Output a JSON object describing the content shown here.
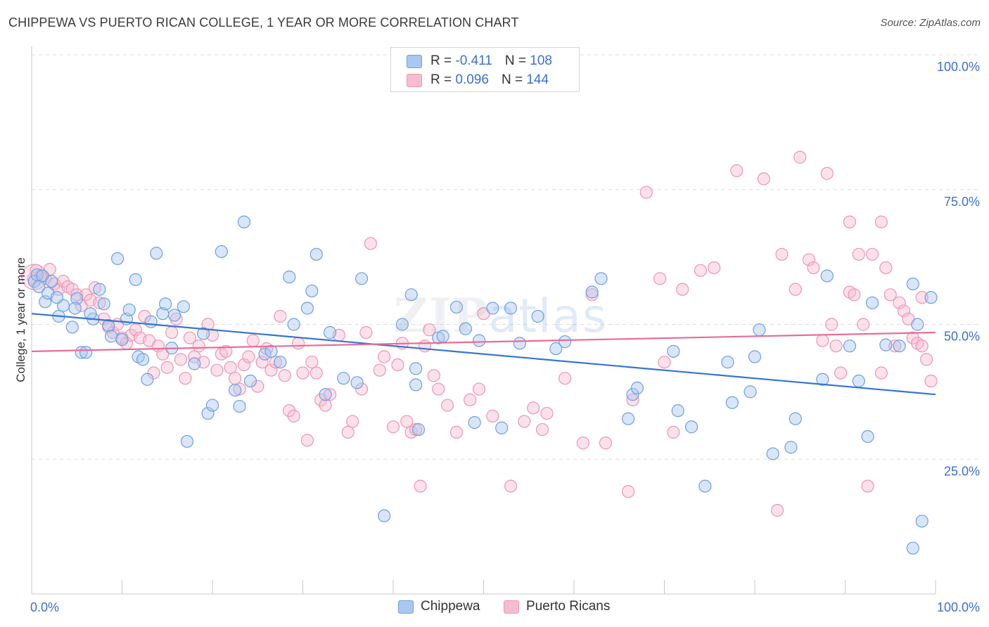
{
  "title": "CHIPPEWA VS PUERTO RICAN COLLEGE, 1 YEAR OR MORE CORRELATION CHART",
  "source": "Source: ZipAtlas.com",
  "watermark": {
    "zip": "ZIP",
    "atlas": "atlas"
  },
  "legend": {
    "rows": [
      {
        "r_label": "R =",
        "r_value": "-0.411",
        "n_label": "N =",
        "n_value": "108"
      },
      {
        "r_label": "R =",
        "r_value": "0.096",
        "n_label": "N =",
        "n_value": "144"
      }
    ]
  },
  "bottom_legend": {
    "chippewa": "Chippewa",
    "puerto_ricans": "Puerto Ricans"
  },
  "colors": {
    "chippewa_fill": "#a9c8f0",
    "chippewa_stroke": "#6e9fe0",
    "chippewa_line": "#3575d0",
    "pr_fill": "#f6bdd0",
    "pr_stroke": "#ee94b2",
    "pr_line": "#e86d96",
    "tick_label": "#3b6fd0",
    "grid": "#dddddd"
  },
  "chart_data": {
    "type": "scatter",
    "title": "CHIPPEWA VS PUERTO RICAN COLLEGE, 1 YEAR OR MORE CORRELATION CHART",
    "xlabel": "",
    "ylabel": "College, 1 year or more",
    "xlim": [
      0,
      100
    ],
    "ylim": [
      0,
      100
    ],
    "x_tick_labels": [
      "0.0%",
      "100.0%"
    ],
    "y_ticks": [
      25,
      50,
      75,
      100
    ],
    "y_tick_labels": [
      "25.0%",
      "50.0%",
      "75.0%",
      "100.0%"
    ],
    "grid": true,
    "legend_position": "top-center",
    "series": [
      {
        "name": "Chippewa",
        "r": -0.411,
        "n": 108,
        "trend": [
          [
            0,
            52.0
          ],
          [
            100,
            37.0
          ]
        ],
        "points": [
          [
            0.3,
            58.0
          ],
          [
            0.6,
            59.2
          ],
          [
            1.2,
            59.0
          ],
          [
            1.5,
            54.2
          ],
          [
            1.8,
            55.8
          ],
          [
            2.2,
            58.0
          ],
          [
            3.0,
            51.5
          ],
          [
            3.5,
            53.5
          ],
          [
            4.5,
            49.5
          ],
          [
            5.0,
            54.8
          ],
          [
            5.5,
            44.8
          ],
          [
            6.0,
            44.8
          ],
          [
            6.8,
            51.0
          ],
          [
            7.5,
            56.5
          ],
          [
            8.0,
            53.8
          ],
          [
            8.5,
            49.8
          ],
          [
            8.8,
            47.8
          ],
          [
            9.5,
            62.2
          ],
          [
            10.0,
            47.2
          ],
          [
            10.5,
            51.0
          ],
          [
            10.8,
            52.7
          ],
          [
            11.5,
            58.3
          ],
          [
            11.8,
            44.0
          ],
          [
            12.3,
            43.5
          ],
          [
            12.8,
            39.8
          ],
          [
            13.2,
            50.5
          ],
          [
            13.8,
            63.2
          ],
          [
            14.5,
            52.0
          ],
          [
            14.8,
            53.8
          ],
          [
            15.5,
            45.6
          ],
          [
            15.8,
            51.7
          ],
          [
            16.8,
            53.3
          ],
          [
            17.2,
            28.3
          ],
          [
            18.0,
            42.7
          ],
          [
            19.0,
            48.3
          ],
          [
            19.5,
            33.5
          ],
          [
            20.0,
            35.0
          ],
          [
            21.0,
            63.5
          ],
          [
            22.5,
            37.8
          ],
          [
            23.0,
            34.8
          ],
          [
            23.5,
            69.0
          ],
          [
            24.2,
            39.5
          ],
          [
            25.8,
            44.5
          ],
          [
            26.5,
            45.0
          ],
          [
            27.5,
            43.0
          ],
          [
            28.5,
            58.8
          ],
          [
            29.0,
            50.0
          ],
          [
            30.5,
            53.0
          ],
          [
            31.0,
            56.2
          ],
          [
            31.5,
            63.0
          ],
          [
            32.5,
            37.0
          ],
          [
            33.0,
            48.5
          ],
          [
            34.5,
            40.0
          ],
          [
            36.0,
            39.2
          ],
          [
            36.5,
            58.5
          ],
          [
            39.0,
            14.5
          ],
          [
            41.0,
            50.0
          ],
          [
            42.0,
            55.5
          ],
          [
            42.5,
            38.8
          ],
          [
            42.5,
            41.8
          ],
          [
            42.8,
            30.5
          ],
          [
            45.0,
            47.5
          ],
          [
            45.5,
            47.8
          ],
          [
            47.0,
            53.2
          ],
          [
            48.0,
            49.2
          ],
          [
            49.0,
            31.8
          ],
          [
            49.5,
            47.0
          ],
          [
            51.0,
            53.0
          ],
          [
            52.0,
            30.8
          ],
          [
            53.0,
            53.0
          ],
          [
            54.0,
            46.5
          ],
          [
            56.0,
            51.5
          ],
          [
            58.0,
            45.5
          ],
          [
            59.0,
            46.8
          ],
          [
            62.0,
            56.0
          ],
          [
            63.0,
            58.5
          ],
          [
            66.0,
            32.5
          ],
          [
            66.5,
            37.0
          ],
          [
            67.0,
            38.2
          ],
          [
            71.0,
            45.0
          ],
          [
            71.5,
            34.0
          ],
          [
            73.0,
            31.0
          ],
          [
            74.5,
            20.0
          ],
          [
            77.0,
            43.0
          ],
          [
            77.5,
            35.5
          ],
          [
            79.5,
            37.5
          ],
          [
            80.0,
            44.0
          ],
          [
            80.5,
            49.0
          ],
          [
            82.0,
            26.0
          ],
          [
            84.0,
            27.2
          ],
          [
            84.5,
            32.5
          ],
          [
            87.5,
            39.8
          ],
          [
            88.0,
            59.0
          ],
          [
            90.5,
            46.0
          ],
          [
            91.5,
            39.5
          ],
          [
            92.5,
            29.2
          ],
          [
            93.0,
            54.0
          ],
          [
            94.5,
            46.2
          ],
          [
            96.0,
            46.0
          ],
          [
            97.5,
            57.5
          ],
          [
            97.5,
            8.5
          ],
          [
            98.5,
            13.5
          ],
          [
            99.5,
            55.0
          ],
          [
            98.0,
            50.0
          ],
          [
            0.8,
            57.0
          ],
          [
            2.8,
            55.0
          ],
          [
            4.8,
            53.0
          ],
          [
            6.5,
            52.0
          ]
        ]
      },
      {
        "name": "Puerto Ricans",
        "r": 0.096,
        "n": 144,
        "trend": [
          [
            0,
            45.0
          ],
          [
            100,
            48.5
          ]
        ],
        "points": [
          [
            0.2,
            58.5
          ],
          [
            0.5,
            60.0
          ],
          [
            1.0,
            59.0
          ],
          [
            1.5,
            58.5
          ],
          [
            2.0,
            60.2
          ],
          [
            2.5,
            57.5
          ],
          [
            3.0,
            56.5
          ],
          [
            3.5,
            58.0
          ],
          [
            4.0,
            57.0
          ],
          [
            4.5,
            56.5
          ],
          [
            5.0,
            55.5
          ],
          [
            5.5,
            53.5
          ],
          [
            6.0,
            55.5
          ],
          [
            6.5,
            54.5
          ],
          [
            7.0,
            56.8
          ],
          [
            7.5,
            54.0
          ],
          [
            8.0,
            51.0
          ],
          [
            8.5,
            49.5
          ],
          [
            9.0,
            48.5
          ],
          [
            9.5,
            50.0
          ],
          [
            10.0,
            47.5
          ],
          [
            10.5,
            46.5
          ],
          [
            11.0,
            48.0
          ],
          [
            11.5,
            49.0
          ],
          [
            12.0,
            47.5
          ],
          [
            12.5,
            51.5
          ],
          [
            13.0,
            47.0
          ],
          [
            13.5,
            41.0
          ],
          [
            14.0,
            46.0
          ],
          [
            14.5,
            44.5
          ],
          [
            15.0,
            42.0
          ],
          [
            15.5,
            48.5
          ],
          [
            16.0,
            51.0
          ],
          [
            16.5,
            43.5
          ],
          [
            17.0,
            40.0
          ],
          [
            17.5,
            47.5
          ],
          [
            18.0,
            44.0
          ],
          [
            18.5,
            46.0
          ],
          [
            19.0,
            43.0
          ],
          [
            19.5,
            50.0
          ],
          [
            20.0,
            48.0
          ],
          [
            20.5,
            41.5
          ],
          [
            21.0,
            44.5
          ],
          [
            21.5,
            45.0
          ],
          [
            22.0,
            42.0
          ],
          [
            22.5,
            40.0
          ],
          [
            23.0,
            38.0
          ],
          [
            23.5,
            42.5
          ],
          [
            24.0,
            44.0
          ],
          [
            24.5,
            47.0
          ],
          [
            25.0,
            38.5
          ],
          [
            25.5,
            43.0
          ],
          [
            26.0,
            45.5
          ],
          [
            26.5,
            41.5
          ],
          [
            27.0,
            43.0
          ],
          [
            27.5,
            51.5
          ],
          [
            28.0,
            40.5
          ],
          [
            28.5,
            34.0
          ],
          [
            29.0,
            33.0
          ],
          [
            29.5,
            46.5
          ],
          [
            30.0,
            41.0
          ],
          [
            30.5,
            28.5
          ],
          [
            31.0,
            43.0
          ],
          [
            31.5,
            41.0
          ],
          [
            32.0,
            36.0
          ],
          [
            32.5,
            35.0
          ],
          [
            33.0,
            37.0
          ],
          [
            34.0,
            48.0
          ],
          [
            35.0,
            30.0
          ],
          [
            35.5,
            32.0
          ],
          [
            36.5,
            38.0
          ],
          [
            37.0,
            48.5
          ],
          [
            37.5,
            65.0
          ],
          [
            38.5,
            41.5
          ],
          [
            39.0,
            44.0
          ],
          [
            40.0,
            31.0
          ],
          [
            40.5,
            42.5
          ],
          [
            41.0,
            46.5
          ],
          [
            41.5,
            32.0
          ],
          [
            42.0,
            30.0
          ],
          [
            42.5,
            30.5
          ],
          [
            43.0,
            20.0
          ],
          [
            43.5,
            46.0
          ],
          [
            44.0,
            49.0
          ],
          [
            44.5,
            40.5
          ],
          [
            45.0,
            38.0
          ],
          [
            46.0,
            35.0
          ],
          [
            47.0,
            30.0
          ],
          [
            48.5,
            36.0
          ],
          [
            49.5,
            38.0
          ],
          [
            50.0,
            52.0
          ],
          [
            51.0,
            33.0
          ],
          [
            53.0,
            20.0
          ],
          [
            54.5,
            32.0
          ],
          [
            55.5,
            34.5
          ],
          [
            56.5,
            30.5
          ],
          [
            57.0,
            33.5
          ],
          [
            59.0,
            40.0
          ],
          [
            61.0,
            28.0
          ],
          [
            62.0,
            55.5
          ],
          [
            63.5,
            28.0
          ],
          [
            66.0,
            19.0
          ],
          [
            66.5,
            36.0
          ],
          [
            68.0,
            74.5
          ],
          [
            69.5,
            58.5
          ],
          [
            70.0,
            43.0
          ],
          [
            71.0,
            30.0
          ],
          [
            72.0,
            56.5
          ],
          [
            74.0,
            60.0
          ],
          [
            75.5,
            60.5
          ],
          [
            78.0,
            78.5
          ],
          [
            81.0,
            77.0
          ],
          [
            82.5,
            15.5
          ],
          [
            83.0,
            63.0
          ],
          [
            84.5,
            56.5
          ],
          [
            85.0,
            81.0
          ],
          [
            86.0,
            62.0
          ],
          [
            86.5,
            60.5
          ],
          [
            87.5,
            47.0
          ],
          [
            88.0,
            78.0
          ],
          [
            88.5,
            50.0
          ],
          [
            89.5,
            41.0
          ],
          [
            90.5,
            56.0
          ],
          [
            90.5,
            69.0
          ],
          [
            91.0,
            55.5
          ],
          [
            91.5,
            63.0
          ],
          [
            92.0,
            50.0
          ],
          [
            92.5,
            20.0
          ],
          [
            93.0,
            63.0
          ],
          [
            94.0,
            69.0
          ],
          [
            94.5,
            60.5
          ],
          [
            95.0,
            55.5
          ],
          [
            96.0,
            54.0
          ],
          [
            96.5,
            52.5
          ],
          [
            97.0,
            51.0
          ],
          [
            97.5,
            47.5
          ],
          [
            98.0,
            46.5
          ],
          [
            98.5,
            46.0
          ],
          [
            99.0,
            43.5
          ],
          [
            99.5,
            39.5
          ],
          [
            94.0,
            41.0
          ],
          [
            98.5,
            55.0
          ],
          [
            95.5,
            46.0
          ],
          [
            89.0,
            46.0
          ]
        ]
      }
    ]
  }
}
